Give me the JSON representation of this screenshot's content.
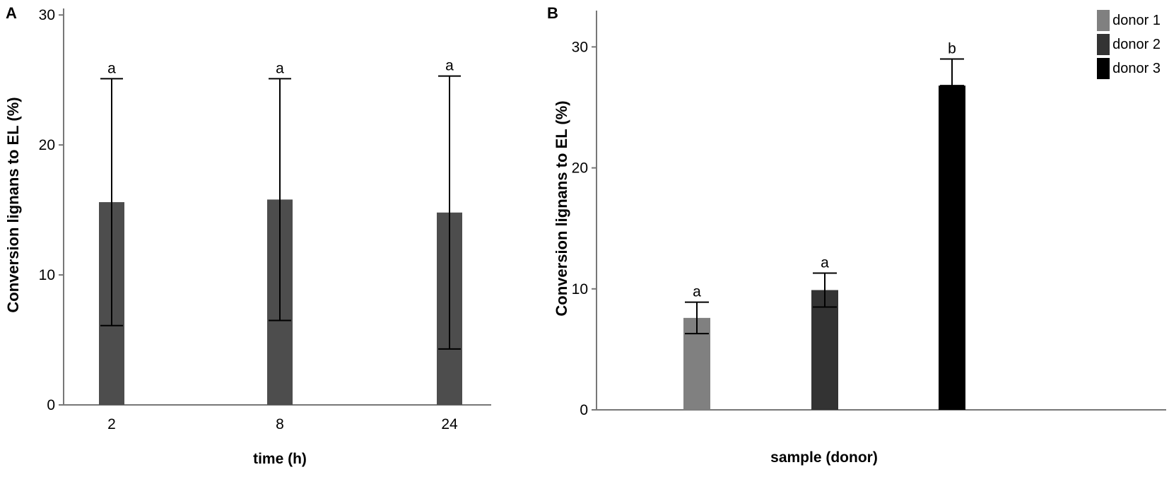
{
  "panel_a": {
    "label": "A",
    "chart_data": {
      "type": "bar",
      "categories": [
        "2",
        "8",
        "24"
      ],
      "values": [
        15.6,
        15.8,
        14.8
      ],
      "error_low": [
        6.1,
        6.5,
        4.3
      ],
      "error_high": [
        25.1,
        25.1,
        25.3
      ],
      "sig_letters": [
        "a",
        "a",
        "a"
      ],
      "xlabel": "time (h)",
      "ylabel": "Conversion lignans to EL (%)",
      "ylim": [
        0,
        30.5
      ],
      "yticks": [
        0,
        10,
        20,
        30
      ],
      "bar_color": "#4d4d4d"
    }
  },
  "panel_b": {
    "label": "B",
    "chart_data": {
      "type": "bar",
      "categories": [
        "donor 1",
        "donor 2",
        "donor 3"
      ],
      "values": [
        7.6,
        9.9,
        26.8
      ],
      "error_low": [
        6.3,
        8.5,
        26.8
      ],
      "error_high": [
        8.9,
        11.3,
        29.0
      ],
      "sig_letters": [
        "a",
        "a",
        "b"
      ],
      "xlabel": "sample (donor)",
      "ylabel": "Conversion lignans to EL (%)",
      "ylim": [
        0,
        33
      ],
      "yticks": [
        0,
        10,
        20,
        30
      ],
      "colors": [
        "#808080",
        "#333333",
        "#000000"
      ],
      "legend": {
        "position": "top-right",
        "items": [
          {
            "label": "donor 1",
            "color": "#808080"
          },
          {
            "label": "donor 2",
            "color": "#333333"
          },
          {
            "label": "donor 3",
            "color": "#000000"
          }
        ]
      }
    }
  }
}
